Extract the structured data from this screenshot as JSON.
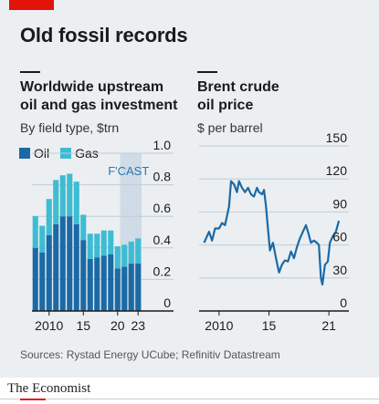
{
  "header": {
    "title": "Old fossil records"
  },
  "left_panel": {
    "title_line1": "Worldwide upstream",
    "title_line2": "oil and gas investment",
    "subtitle": "By field type, $trn",
    "legend": [
      {
        "label": "Oil",
        "color": "#1b6aa5"
      },
      {
        "label": "Gas",
        "color": "#3ebcd2"
      }
    ],
    "forecast_label": "F'CAST"
  },
  "right_panel": {
    "title_line1": "Brent crude",
    "title_line2": "oil price",
    "subtitle": "$ per barrel"
  },
  "footer": {
    "source": "Sources: Rystad Energy UCube; Refinitiv Datastream",
    "brand": "The Economist"
  },
  "colors": {
    "oil": "#1b6aa5",
    "gas": "#3ebcd2",
    "forecast_shade": "#cfdbe6",
    "price_line": "#1b6aa5",
    "accent_red": "#e3120b",
    "background": "#ebeff2"
  },
  "chart_data": [
    {
      "type": "bar",
      "stacked": true,
      "categories": [
        "2008",
        "2009",
        "2010",
        "2011",
        "2012",
        "2013",
        "2014",
        "2015",
        "2016",
        "2017",
        "2018",
        "2019",
        "2020",
        "2021",
        "2022",
        "2023"
      ],
      "x_tick_labels": [
        {
          "x": "2010",
          "label": "2010"
        },
        {
          "x": "2015",
          "label": "15"
        },
        {
          "x": "2020",
          "label": "20"
        },
        {
          "x": "2023",
          "label": "23"
        }
      ],
      "series": [
        {
          "name": "Oil",
          "values": [
            0.4,
            0.37,
            0.48,
            0.55,
            0.6,
            0.6,
            0.55,
            0.45,
            0.33,
            0.34,
            0.35,
            0.36,
            0.27,
            0.28,
            0.3,
            0.3
          ]
        },
        {
          "name": "Gas",
          "values": [
            0.2,
            0.17,
            0.23,
            0.28,
            0.26,
            0.27,
            0.27,
            0.16,
            0.16,
            0.15,
            0.16,
            0.15,
            0.14,
            0.14,
            0.14,
            0.16
          ]
        }
      ],
      "forecast_from": "2021",
      "forecast_label": "F'CAST",
      "ylim": [
        0,
        1.0
      ],
      "yticks": [
        0,
        0.2,
        0.4,
        0.6,
        0.8,
        1.0
      ],
      "ytick_labels": [
        "0",
        "0.2",
        "0.4",
        "0.6",
        "0.8",
        "1.0"
      ],
      "title": "Worldwide upstream oil and gas investment",
      "subtitle": "By field type, $trn",
      "legend": "top-left"
    },
    {
      "type": "line",
      "title": "Brent crude oil price",
      "subtitle": "$ per barrel",
      "x": [
        2008.5,
        2009.0,
        2009.3,
        2009.6,
        2010.0,
        2010.3,
        2010.6,
        2011.0,
        2011.2,
        2011.5,
        2011.8,
        2012.0,
        2012.3,
        2012.6,
        2012.9,
        2013.2,
        2013.5,
        2013.8,
        2014.0,
        2014.3,
        2014.5,
        2014.7,
        2014.9,
        2015.1,
        2015.4,
        2015.7,
        2016.0,
        2016.3,
        2016.6,
        2016.9,
        2017.2,
        2017.5,
        2017.8,
        2018.1,
        2018.4,
        2018.7,
        2018.9,
        2019.2,
        2019.5,
        2019.8,
        2020.0,
        2020.2,
        2020.35,
        2020.6,
        2020.9,
        2021.1,
        2021.4,
        2021.7,
        2022.0
      ],
      "y": [
        62,
        72,
        64,
        75,
        75,
        80,
        78,
        95,
        118,
        115,
        108,
        118,
        112,
        108,
        112,
        106,
        104,
        112,
        108,
        106,
        110,
        95,
        75,
        55,
        62,
        48,
        35,
        42,
        46,
        45,
        54,
        48,
        58,
        66,
        72,
        78,
        72,
        62,
        64,
        62,
        60,
        30,
        24,
        42,
        45,
        62,
        68,
        72,
        82
      ],
      "xlim": [
        2008,
        2023
      ],
      "x_tick_labels": [
        {
          "x": 2010,
          "label": "2010"
        },
        {
          "x": 2015,
          "label": "15"
        },
        {
          "x": 2021,
          "label": "21"
        }
      ],
      "ylim": [
        0,
        150
      ],
      "yticks": [
        0,
        30,
        60,
        90,
        120,
        150
      ],
      "ytick_labels": [
        "0",
        "30",
        "60",
        "90",
        "120",
        "150"
      ]
    }
  ]
}
